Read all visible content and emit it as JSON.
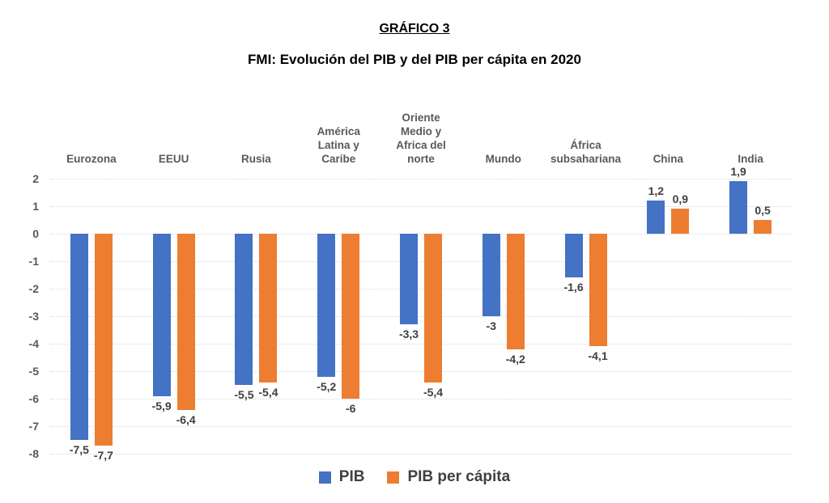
{
  "page": {
    "title": "GRÁFICO 3",
    "subtitle": "FMI: Evolución del PIB y del PIB per cápita en 2020"
  },
  "legend": {
    "items": [
      {
        "label": "PIB",
        "color": "#4472C4"
      },
      {
        "label": "PIB per cápita",
        "color": "#ED7D31"
      }
    ]
  },
  "colors": {
    "pib": "#4472C4",
    "pib_per_capita": "#ED7D31",
    "gridline": "#D9D9D9",
    "axis_text": "#595959",
    "data_label_text": "#3F3F3F",
    "title_text": "#000000"
  },
  "chart_data": {
    "type": "bar",
    "title": "FMI: Evolución del PIB y del PIB per cápita en 2020",
    "header": "GRÁFICO 3",
    "categories": [
      "Eurozona",
      "EEUU",
      "Rusia",
      "América Latina y Caribe",
      "Oriente Medio y Africa del norte",
      "Mundo",
      "África subsahariana",
      "China",
      "India"
    ],
    "category_display": [
      "Eurozona",
      "EEUU",
      "Rusia",
      "América\nLatina y\nCaribe",
      "Oriente\nMedio y\nAfrica del\nnorte",
      "Mundo",
      "África\nsubsahariana",
      "China",
      "India"
    ],
    "series": [
      {
        "name": "PIB",
        "color": "#4472C4",
        "values": [
          -7.5,
          -5.9,
          -5.5,
          -5.2,
          -3.3,
          -3,
          -1.6,
          1.2,
          1.9
        ],
        "labels": [
          "-7,5",
          "-5,9",
          "-5,5",
          "-5,2",
          "-3,3",
          "-3",
          "-1,6",
          "1,2",
          "1,9"
        ]
      },
      {
        "name": "PIB per cápita",
        "color": "#ED7D31",
        "values": [
          -7.7,
          -6.4,
          -5.4,
          -6,
          -5.4,
          -4.2,
          -4.1,
          0.9,
          0.5
        ],
        "labels": [
          "-7,7",
          "-6,4",
          "-5,4",
          "-6",
          "-5,4",
          "-4,2",
          "-4,1",
          "0,9",
          "0,5"
        ]
      }
    ],
    "yticks": [
      2,
      1,
      0,
      -1,
      -2,
      -3,
      -4,
      -5,
      -6,
      -7,
      -8
    ],
    "ylim": [
      -8,
      2
    ],
    "xlabel": "",
    "ylabel": "",
    "grid": "horizontal-dotted",
    "data_labels": "outside-end",
    "decimal_separator": ",",
    "legend_position": "bottom"
  }
}
